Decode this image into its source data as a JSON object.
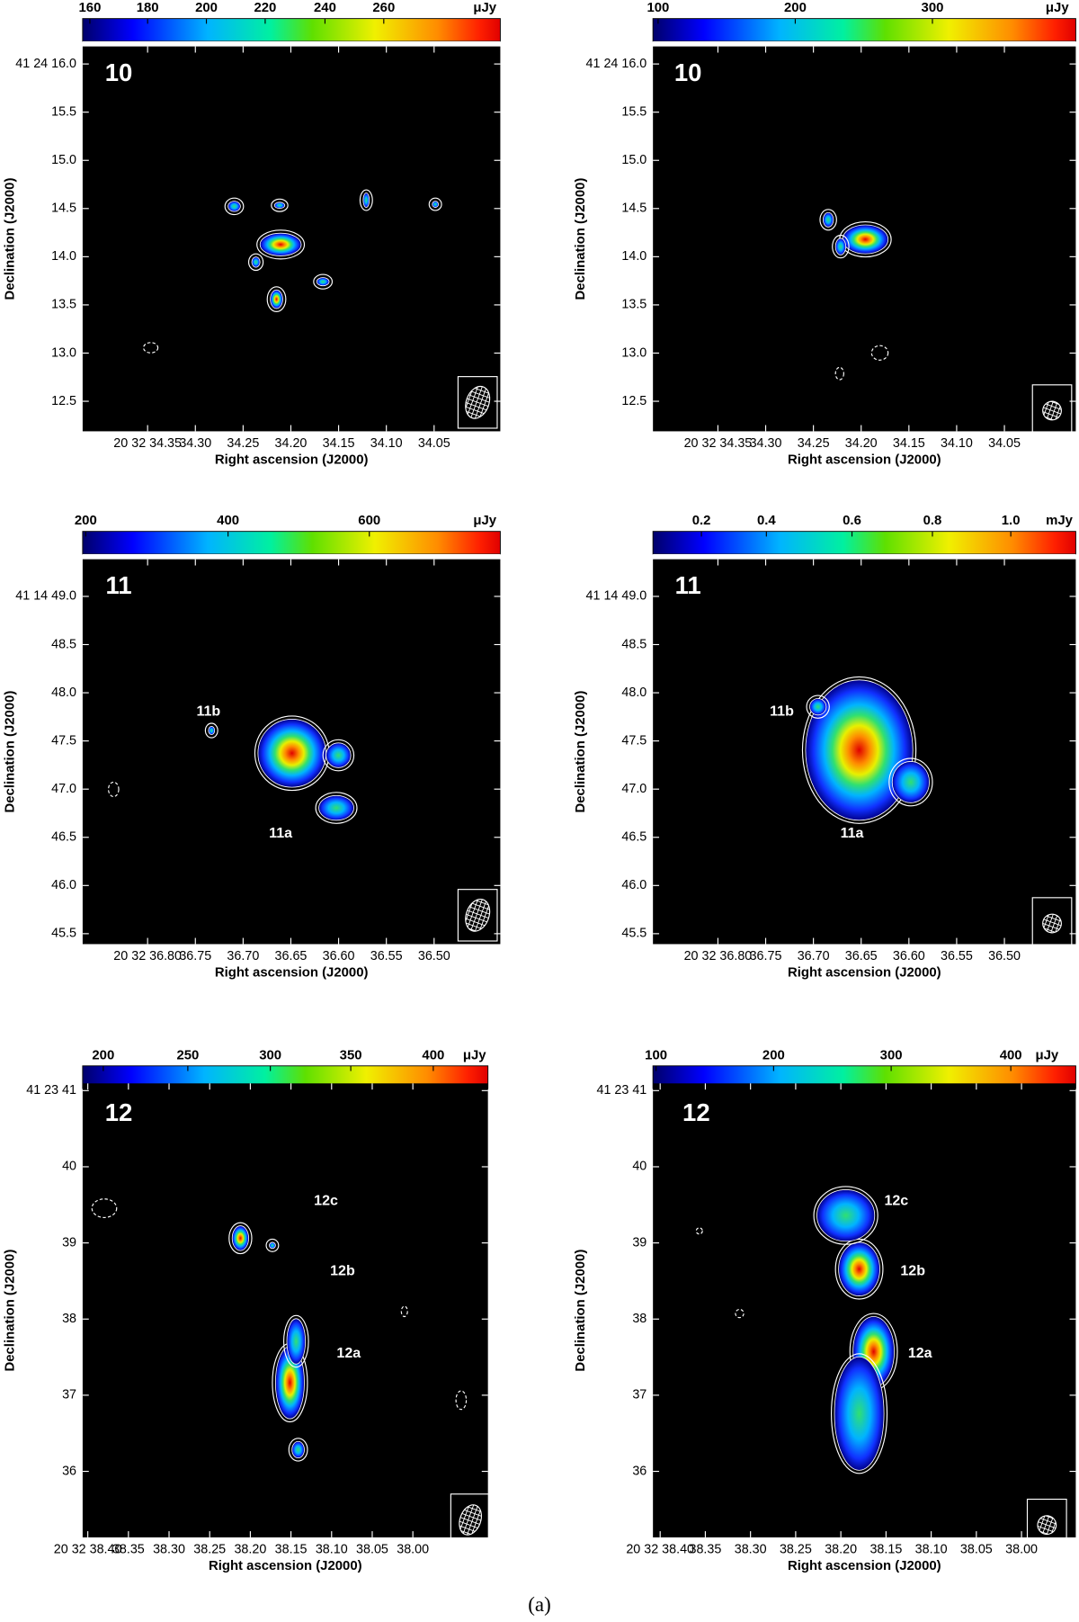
{
  "figure": {
    "caption": "(a)",
    "panels": [
      {
        "number": "10",
        "colorbar": {
          "ticks": [
            "160",
            "180",
            "200",
            "220",
            "240",
            "260"
          ],
          "unit": "μJy"
        },
        "yticks": [
          "41 24 16.0",
          "15.5",
          "15.0",
          "14.5",
          "14.0",
          "13.5",
          "13.0",
          "12.5"
        ],
        "xticks": [
          "20 32 34.35",
          "34.30",
          "34.25",
          "34.20",
          "34.15",
          "34.10",
          "34.05"
        ],
        "xlabel": "Right ascension (J2000)",
        "ylabel": "Declination (J2000)",
        "sources": []
      },
      {
        "number": "10",
        "colorbar": {
          "ticks": [
            "100",
            "200",
            "300"
          ],
          "unit": "μJy"
        },
        "yticks": [
          "41 24 16.0",
          "15.5",
          "15.0",
          "14.5",
          "14.0",
          "13.5",
          "13.0",
          "12.5"
        ],
        "xticks": [
          "20 32 34.35",
          "34.30",
          "34.25",
          "34.20",
          "34.15",
          "34.10",
          "34.05"
        ],
        "xlabel": "Right ascension (J2000)",
        "ylabel": "Declination (J2000)",
        "sources": []
      },
      {
        "number": "11",
        "colorbar": {
          "ticks": [
            "200",
            "400",
            "600"
          ],
          "unit": "μJy"
        },
        "yticks": [
          "41 14 49.0",
          "48.5",
          "48.0",
          "47.5",
          "47.0",
          "46.5",
          "46.0",
          "45.5"
        ],
        "xticks": [
          "20 32 36.80",
          "36.75",
          "36.70",
          "36.65",
          "36.60",
          "36.55",
          "36.50"
        ],
        "xlabel": "Right ascension (J2000)",
        "ylabel": "Declination (J2000)",
        "sources": [
          "11b",
          "11a"
        ]
      },
      {
        "number": "11",
        "colorbar": {
          "ticks": [
            "0.2",
            "0.4",
            "0.6",
            "0.8",
            "1.0"
          ],
          "unit": "mJy"
        },
        "yticks": [
          "41 14 49.0",
          "48.5",
          "48.0",
          "47.5",
          "47.0",
          "46.5",
          "46.0",
          "45.5"
        ],
        "xticks": [
          "20 32 36.80",
          "36.75",
          "36.70",
          "36.65",
          "36.60",
          "36.55",
          "36.50"
        ],
        "xlabel": "Right ascension (J2000)",
        "ylabel": "Declination (J2000)",
        "sources": [
          "11b",
          "11a"
        ]
      },
      {
        "number": "12",
        "colorbar": {
          "ticks": [
            "200",
            "250",
            "300",
            "350",
            "400"
          ],
          "unit": "μJy"
        },
        "yticks": [
          "41 23 41",
          "40",
          "39",
          "38",
          "37",
          "36"
        ],
        "xticks": [
          "20 32 38.40",
          "38.35",
          "38.30",
          "38.25",
          "38.20",
          "38.15",
          "38.10",
          "38.05",
          "38.00"
        ],
        "xlabel": "Right ascension (J2000)",
        "ylabel": "Declination (J2000)",
        "sources": [
          "12c",
          "12b",
          "12a"
        ]
      },
      {
        "number": "12",
        "colorbar": {
          "ticks": [
            "100",
            "200",
            "300",
            "400"
          ],
          "unit": "μJy"
        },
        "yticks": [
          "41 23 41",
          "40",
          "39",
          "38",
          "37",
          "36"
        ],
        "xticks": [
          "20 32 38.40",
          "38.35",
          "38.30",
          "38.25",
          "38.20",
          "38.15",
          "38.10",
          "38.05",
          "38.00"
        ],
        "xlabel": "Right ascension (J2000)",
        "ylabel": "Declination (J2000)",
        "sources": [
          "12c",
          "12b",
          "12a"
        ]
      }
    ]
  }
}
